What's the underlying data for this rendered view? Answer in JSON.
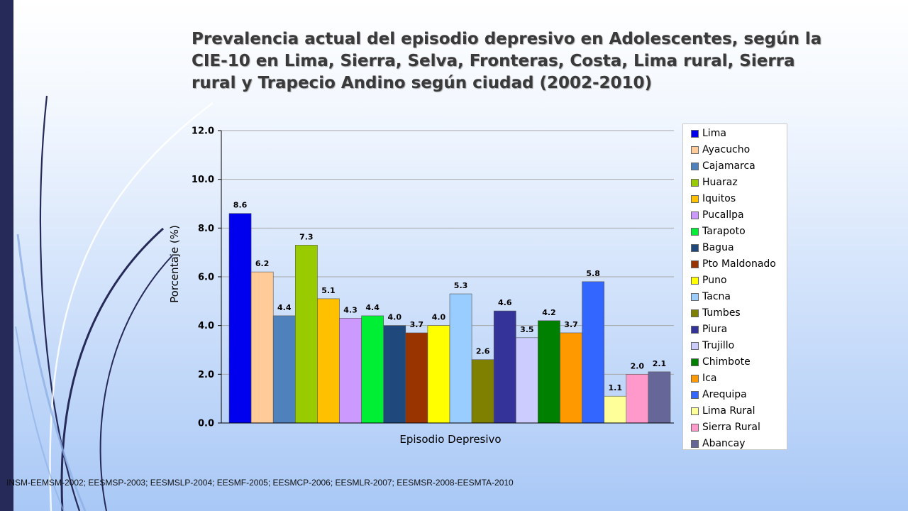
{
  "slide": {
    "title": "Prevalencia actual del episodio depresivo en Adolescentes, según la CIE-10 en Lima, Sierra, Selva, Fronteras, Costa, Lima rural, Sierra rural y Trapecio Andino según ciudad (2002-2010)",
    "source": "INSM-EEMSM-2002; EESMSP-2003; EESMSLP-2004; EESMF-2005; EESMCP-2006; EESMLR-2007; EESMSR-2008-EESMTA-2010"
  },
  "chart_data": {
    "type": "bar",
    "title": "Prevalencia actual del episodio depresivo en Adolescentes, según la CIE-10 en Lima, Sierra, Selva, Fronteras, Costa, Lima rural, Sierra rural y Trapecio Andino según ciudad (2002-2010)",
    "xlabel": "Episodio Depresivo",
    "ylabel": "Porcentaje (%)",
    "ylim": [
      0,
      12
    ],
    "yticks": [
      "0.0",
      "2.0",
      "4.0",
      "6.0",
      "8.0",
      "10.0",
      "12.0"
    ],
    "grid": true,
    "legend_position": "right",
    "categories": [
      "Episodio Depresivo"
    ],
    "series": [
      {
        "name": "Lima",
        "value": 8.6,
        "label": "8.6",
        "color": "#0000ee"
      },
      {
        "name": "Ayacucho",
        "value": 6.2,
        "label": "6.2",
        "color": "#ffcc99"
      },
      {
        "name": "Cajamarca",
        "value": 4.4,
        "label": "4.4",
        "color": "#4f81bd"
      },
      {
        "name": "Huaraz",
        "value": 7.3,
        "label": "7.3",
        "color": "#99cc00"
      },
      {
        "name": "Iquitos",
        "value": 5.1,
        "label": "5.1",
        "color": "#ffc000"
      },
      {
        "name": "Pucallpa",
        "value": 4.3,
        "label": "4.3",
        "color": "#cc99ff"
      },
      {
        "name": "Tarapoto",
        "value": 4.4,
        "label": "4.4",
        "color": "#00ee33"
      },
      {
        "name": "Bagua",
        "value": 4.0,
        "label": "4.0",
        "color": "#1f497d"
      },
      {
        "name": "Pto Maldonado",
        "value": 3.7,
        "label": "3.7",
        "color": "#993300"
      },
      {
        "name": "Puno",
        "value": 4.0,
        "label": "4.0",
        "color": "#ffff00"
      },
      {
        "name": "Tacna",
        "value": 5.3,
        "label": "5.3",
        "color": "#99ccff"
      },
      {
        "name": "Tumbes",
        "value": 2.6,
        "label": "2.6",
        "color": "#808000"
      },
      {
        "name": "Piura",
        "value": 4.6,
        "label": "4.6",
        "color": "#333399"
      },
      {
        "name": "Trujillo",
        "value": 3.5,
        "label": "3.5",
        "color": "#ccccff"
      },
      {
        "name": "Chimbote",
        "value": 4.2,
        "label": "4.2",
        "color": "#008000"
      },
      {
        "name": "Ica",
        "value": 3.7,
        "label": "3.7",
        "color": "#ff9900"
      },
      {
        "name": "Arequipa",
        "value": 5.8,
        "label": "5.8",
        "color": "#3366ff"
      },
      {
        "name": "Lima Rural",
        "value": 1.1,
        "label": "1.1",
        "color": "#ffff99"
      },
      {
        "name": "Sierra Rural",
        "value": 2.0,
        "label": "2.0",
        "color": "#ff99cc"
      },
      {
        "name": "Abancay",
        "value": 2.1,
        "label": "2.1",
        "color": "#666699"
      }
    ]
  }
}
